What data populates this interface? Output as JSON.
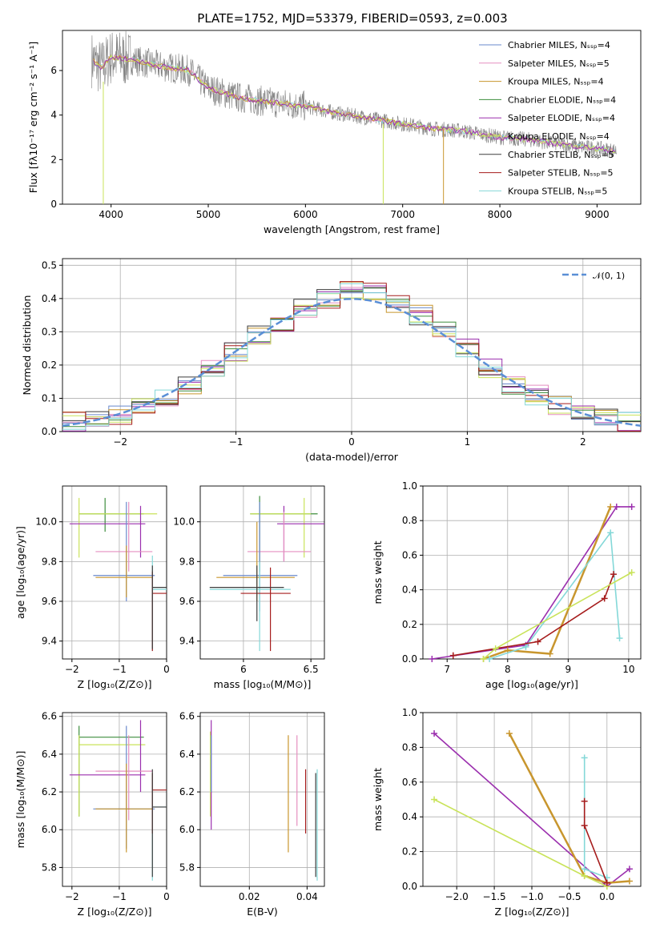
{
  "colors": [
    "#6a89cc",
    "#e58fc0",
    "#c8962e",
    "#3e8e3e",
    "#9b2fae",
    "#c9e35a",
    "#3d3d3d",
    "#a61c1c",
    "#84d8d8"
  ],
  "chart_data": [
    {
      "type": "line",
      "title": "PLATE=1752, MJD=53379, FIBERID=0593, z=0.003",
      "xlabel": "wavelength [Angstrom, rest frame]",
      "ylabel": "Flux [fλ10⁻¹⁷ erg cm⁻² s⁻¹ A⁻¹]",
      "xlim": [
        3500,
        9450
      ],
      "ylim": [
        0,
        7.8
      ],
      "xticks": [
        4000,
        5000,
        6000,
        7000,
        8000,
        9000
      ],
      "yticks": [
        0,
        2,
        4,
        6
      ],
      "data_curve": {
        "x": [
          3800,
          3900,
          4000,
          4200,
          4500,
          4800,
          5000,
          5300,
          5600,
          6000,
          6300,
          6600,
          7000,
          7300,
          7600,
          8000,
          8300,
          8600,
          9000,
          9200
        ],
        "y": [
          6.5,
          6.1,
          6.6,
          6.5,
          6.2,
          6.0,
          5.2,
          4.8,
          4.6,
          4.4,
          4.1,
          3.9,
          3.6,
          3.4,
          3.3,
          3.0,
          2.9,
          2.7,
          2.5,
          2.4
        ]
      },
      "legend": [
        "Chabrier MILES, Nₛₛₚ=4",
        "Salpeter MILES, Nₛₛₚ=5",
        "Kroupa MILES, Nₛₛₚ=4",
        "Chabrier ELODIE, Nₛₛₚ=4",
        "Salpeter ELODIE, Nₛₛₚ=4",
        "Kroupa ELODIE, Nₛₛₚ=4",
        "Chabrier STELIB, Nₛₛₚ=5",
        "Salpeter STELIB, Nₛₛₚ=5",
        "Kroupa STELIB, Nₛₛₚ=5"
      ]
    },
    {
      "type": "histogram",
      "xlabel": "(data-model)/error",
      "ylabel": "Normed distribution",
      "xlim": [
        -2.5,
        2.5
      ],
      "ylim": [
        0,
        0.52
      ],
      "xticks": [
        -2,
        -1,
        0,
        1,
        2
      ],
      "yticks": [
        0.0,
        0.1,
        0.2,
        0.3,
        0.4,
        0.5
      ],
      "legend": "𝒩(0, 1)",
      "bin_centers": [
        -2.4,
        -2.2,
        -2.0,
        -1.8,
        -1.6,
        -1.4,
        -1.2,
        -1.0,
        -0.8,
        -0.6,
        -0.4,
        -0.2,
        0.0,
        0.2,
        0.4,
        0.6,
        0.8,
        1.0,
        1.2,
        1.4,
        1.6,
        1.8,
        2.0,
        2.2,
        2.4
      ],
      "values": [
        0.03,
        0.04,
        0.05,
        0.07,
        0.1,
        0.14,
        0.19,
        0.24,
        0.29,
        0.33,
        0.37,
        0.4,
        0.43,
        0.42,
        0.38,
        0.35,
        0.3,
        0.25,
        0.19,
        0.14,
        0.11,
        0.08,
        0.05,
        0.04,
        0.03
      ]
    },
    {
      "type": "scatter",
      "xlabel": "Z [log₁₀(Z/Z⊙)]",
      "ylabel": "age  [log₁₀(age/yr)]",
      "xlim": [
        -2.2,
        0
      ],
      "ylim": [
        9.31,
        10.18
      ],
      "xticks": [
        -2,
        -1,
        0
      ],
      "yticks": [
        9.4,
        9.6,
        9.8,
        10.0
      ],
      "points": [
        {
          "x": -1.3,
          "y": 10.04,
          "xe": [
            -1.85,
            -0.48
          ],
          "ye": [
            9.95,
            10.12
          ]
        },
        {
          "x": -1.4,
          "y": 9.99,
          "xe": [
            -2.05,
            -0.45
          ],
          "ye": [
            9.85,
            10.1
          ]
        },
        {
          "x": -0.85,
          "y": 9.72,
          "xe": [
            -1.5,
            -0.25
          ],
          "ye": [
            9.62,
            9.8
          ]
        },
        {
          "x": -0.85,
          "y": 9.85,
          "xe": [
            -1.5,
            -0.3
          ],
          "ye": [
            9.75,
            10.0
          ]
        },
        {
          "x": -0.3,
          "y": 9.66,
          "xe": [
            -0.3,
            0.0
          ],
          "ye": [
            9.35,
            9.83
          ]
        }
      ]
    },
    {
      "type": "scatter",
      "xlabel": "mass [log₁₀(M/M⊙)]",
      "xlim": [
        5.68,
        6.6
      ],
      "ylim": [
        9.31,
        10.18
      ],
      "xticks": [
        6.0,
        6.5
      ],
      "yticks": [
        9.4,
        9.6,
        9.8,
        10.0
      ]
    },
    {
      "type": "line",
      "xlabel": "age  [log₁₀(age/yr)]",
      "ylabel": "mass weight",
      "xlim": [
        6.6,
        10.2
      ],
      "ylim": [
        0,
        1.0
      ],
      "xticks": [
        7,
        8,
        9,
        10
      ],
      "yticks": [
        0.0,
        0.2,
        0.4,
        0.6,
        0.8,
        1.0
      ],
      "series": [
        {
          "x": [
            6.75,
            8.3,
            9.8,
            10.05
          ],
          "y": [
            0.0,
            0.08,
            0.88,
            0.88
          ]
        },
        {
          "x": [
            7.6,
            8.0,
            8.7,
            9.7
          ],
          "y": [
            0.0,
            0.05,
            0.03,
            0.88
          ]
        },
        {
          "x": [
            7.7,
            8.3,
            9.7,
            9.85
          ],
          "y": [
            0.0,
            0.07,
            0.73,
            0.12
          ]
        },
        {
          "x": [
            7.1,
            8.5,
            9.6,
            9.75
          ],
          "y": [
            0.02,
            0.1,
            0.35,
            0.49
          ]
        },
        {
          "x": [
            7.6,
            7.8,
            10.05
          ],
          "y": [
            0.0,
            0.06,
            0.5
          ]
        }
      ]
    },
    {
      "type": "scatter",
      "xlabel": "Z [log₁₀(Z/Z⊙)]",
      "ylabel": "mass [log₁₀(M/M⊙)]",
      "xlim": [
        -2.2,
        0
      ],
      "ylim": [
        5.7,
        6.62
      ],
      "xticks": [
        -2,
        -1,
        0
      ],
      "yticks": [
        5.8,
        6.0,
        6.2,
        6.4,
        6.6
      ]
    },
    {
      "type": "scatter",
      "xlabel": "E(B-V)",
      "xlim": [
        0.003,
        0.046
      ],
      "ylim": [
        5.7,
        6.62
      ],
      "xticks": [
        0.02,
        0.04
      ],
      "yticks": [
        5.8,
        6.0,
        6.2,
        6.4,
        6.6
      ]
    },
    {
      "type": "line",
      "xlabel": "Z [log₁₀(Z/Z⊙)]",
      "ylabel": "mass weight",
      "xlim": [
        -2.45,
        0.45
      ],
      "ylim": [
        0,
        1.0
      ],
      "xticks": [
        -2.0,
        -1.5,
        -1.0,
        -0.5,
        0.0
      ],
      "yticks": [
        0.0,
        0.2,
        0.4,
        0.6,
        0.8,
        1.0
      ],
      "series": [
        {
          "x": [
            -2.3,
            0.0,
            0.3
          ],
          "y": [
            0.88,
            0.0,
            0.1
          ]
        },
        {
          "x": [
            -1.3,
            -0.3,
            0.0,
            0.3
          ],
          "y": [
            0.88,
            0.06,
            0.02,
            0.03
          ]
        },
        {
          "x": [
            -2.3,
            -0.3,
            0.0
          ],
          "y": [
            0.5,
            0.06,
            0.0
          ]
        },
        {
          "x": [
            -0.3,
            -0.3,
            0.0
          ],
          "y": [
            0.74,
            0.1,
            0.05
          ]
        },
        {
          "x": [
            -0.3,
            -0.3,
            0.0
          ],
          "y": [
            0.49,
            0.35,
            0.02
          ]
        }
      ]
    }
  ]
}
